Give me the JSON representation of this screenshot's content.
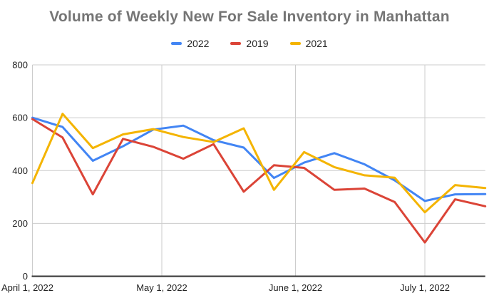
{
  "title": "Volume of Weekly New For Sale Inventory in Manhattan",
  "colors": {
    "series_2022": "#4285F4",
    "series_2019": "#DB4437",
    "series_2021": "#F4B400",
    "title_text": "#757575",
    "tick_text": "#222222",
    "gridline": "#CCCCCC",
    "axis_line": "#333333",
    "background": "#FFFFFF"
  },
  "legend": {
    "items": [
      {
        "label": "2022",
        "color": "#4285F4"
      },
      {
        "label": "2019",
        "color": "#DB4437"
      },
      {
        "label": "2021",
        "color": "#F4B400"
      }
    ]
  },
  "chart_data": {
    "type": "line",
    "title": "Volume of Weekly New For Sale Inventory in Manhattan",
    "xlabel": "",
    "ylabel": "",
    "x": [
      "Apr 1",
      "Apr 8",
      "Apr 15",
      "Apr 22",
      "Apr 29",
      "May 6",
      "May 13",
      "May 20",
      "May 27",
      "Jun 3",
      "Jun 10",
      "Jun 17",
      "Jun 24",
      "Jul 1",
      "Jul 8",
      "Jul 15"
    ],
    "series": [
      {
        "name": "2022",
        "color": "#4285F4",
        "values": [
          600,
          565,
          437,
          492,
          555,
          570,
          515,
          487,
          372,
          430,
          466,
          424,
          363,
          285,
          310,
          311
        ]
      },
      {
        "name": "2019",
        "color": "#DB4437",
        "values": [
          595,
          525,
          310,
          520,
          490,
          445,
          500,
          320,
          420,
          410,
          327,
          332,
          281,
          128,
          291,
          265
        ]
      },
      {
        "name": "2021",
        "color": "#F4B400",
        "values": [
          353,
          615,
          485,
          537,
          557,
          527,
          508,
          560,
          327,
          470,
          413,
          382,
          373,
          242,
          345,
          334
        ]
      }
    ],
    "ylim": [
      0,
      800
    ],
    "yticks": [
      0,
      200,
      400,
      600,
      800
    ],
    "xtick_labels": [
      "April 1, 2022",
      "May 1, 2022",
      "June 1, 2022",
      "July 1, 2022"
    ],
    "xtick_day_offsets": [
      0,
      30,
      61,
      91
    ],
    "days_per_point": 7,
    "grid": true,
    "legend_position": "top"
  }
}
